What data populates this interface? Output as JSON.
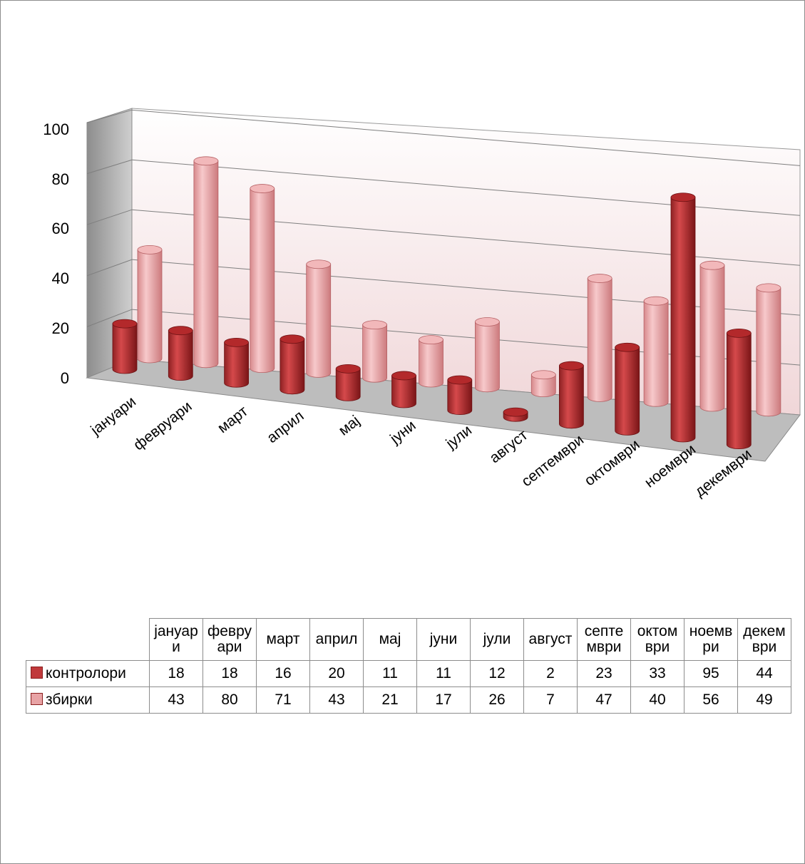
{
  "chart_data": {
    "type": "bar",
    "style": "3d-cylinder",
    "categories": [
      "јануари",
      "февруари",
      "март",
      "април",
      "мај",
      "јуни",
      "јули",
      "август",
      "септември",
      "октомври",
      "ноември",
      "декември"
    ],
    "table_headers": [
      "јануар\nи",
      "февру\nари",
      "март",
      "април",
      "мај",
      "јуни",
      "јули",
      "август",
      "септе\nмври",
      "октом\nври",
      "ноемв\nри",
      "декем\nври"
    ],
    "series": [
      {
        "name": "контролори",
        "color": "#c0393b",
        "values": [
          18,
          18,
          16,
          20,
          11,
          11,
          12,
          2,
          23,
          33,
          95,
          44
        ]
      },
      {
        "name": "збирки",
        "color": "#e8a3a5",
        "values": [
          43,
          80,
          71,
          43,
          21,
          17,
          26,
          7,
          47,
          40,
          56,
          49
        ]
      }
    ],
    "yticks": [
      "100",
      "80",
      "60",
      "40",
      "20",
      "0"
    ],
    "ylim": [
      0,
      100
    ],
    "grid": true,
    "legend": "data-table-below"
  }
}
